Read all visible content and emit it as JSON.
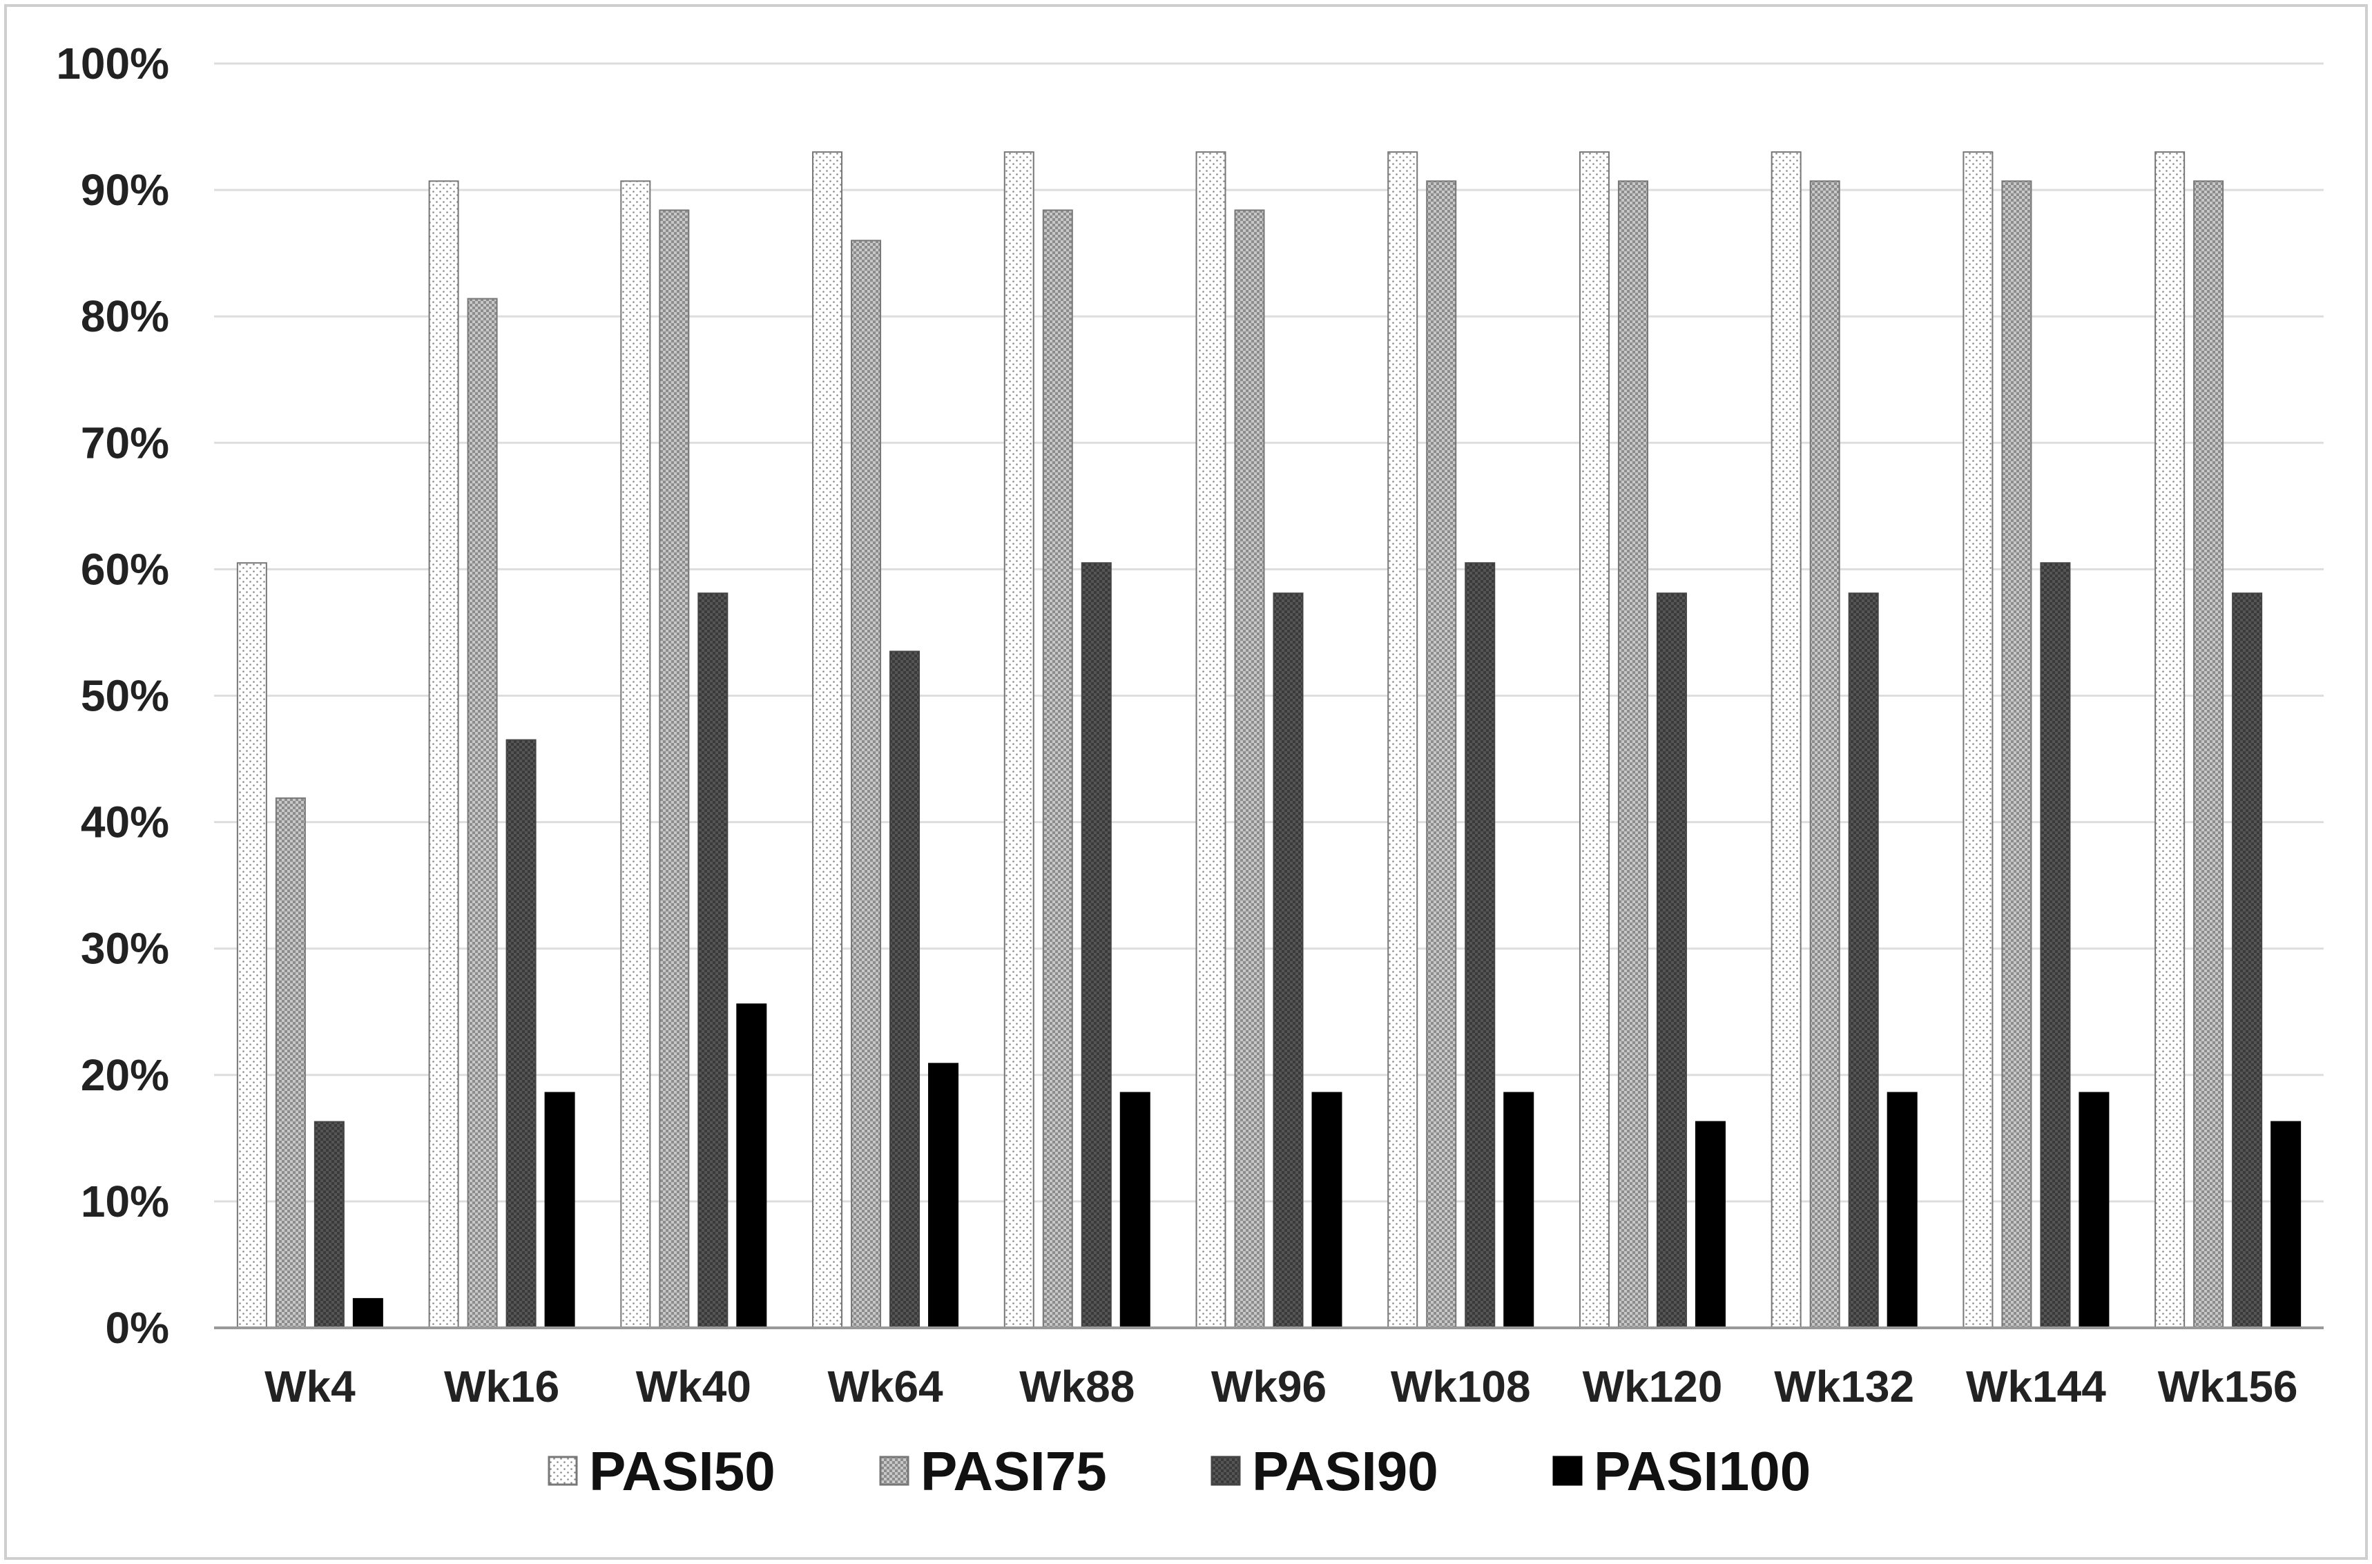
{
  "chart_data": {
    "type": "bar",
    "title": "",
    "xlabel": "",
    "ylabel": "",
    "ylim": [
      0,
      100
    ],
    "y_ticks": [
      "0%",
      "10%",
      "20%",
      "30%",
      "40%",
      "50%",
      "60%",
      "70%",
      "80%",
      "90%",
      "100%"
    ],
    "grid": true,
    "legend_position": "bottom",
    "categories": [
      "Wk4",
      "Wk16",
      "Wk40",
      "Wk64",
      "Wk88",
      "Wk96",
      "Wk108",
      "Wk120",
      "Wk132",
      "Wk144",
      "Wk156"
    ],
    "series": [
      {
        "name": "PASI50",
        "pattern": "dotted-white",
        "values": [
          60.5,
          90.7,
          90.7,
          93.0,
          93.0,
          93.0,
          93.0,
          93.0,
          93.0,
          93.0,
          93.0
        ]
      },
      {
        "name": "PASI75",
        "pattern": "checker-gray",
        "values": [
          41.9,
          81.4,
          88.4,
          86.0,
          88.4,
          88.4,
          90.7,
          90.7,
          90.7,
          90.7,
          90.7
        ]
      },
      {
        "name": "PASI90",
        "pattern": "dark-gray",
        "values": [
          16.3,
          46.5,
          58.1,
          53.5,
          60.5,
          58.1,
          60.5,
          58.1,
          58.1,
          60.5,
          58.1
        ]
      },
      {
        "name": "PASI100",
        "pattern": "solid-black",
        "values": [
          2.3,
          18.6,
          25.6,
          20.9,
          18.6,
          18.6,
          18.6,
          16.3,
          18.6,
          18.6,
          16.3
        ]
      }
    ]
  }
}
